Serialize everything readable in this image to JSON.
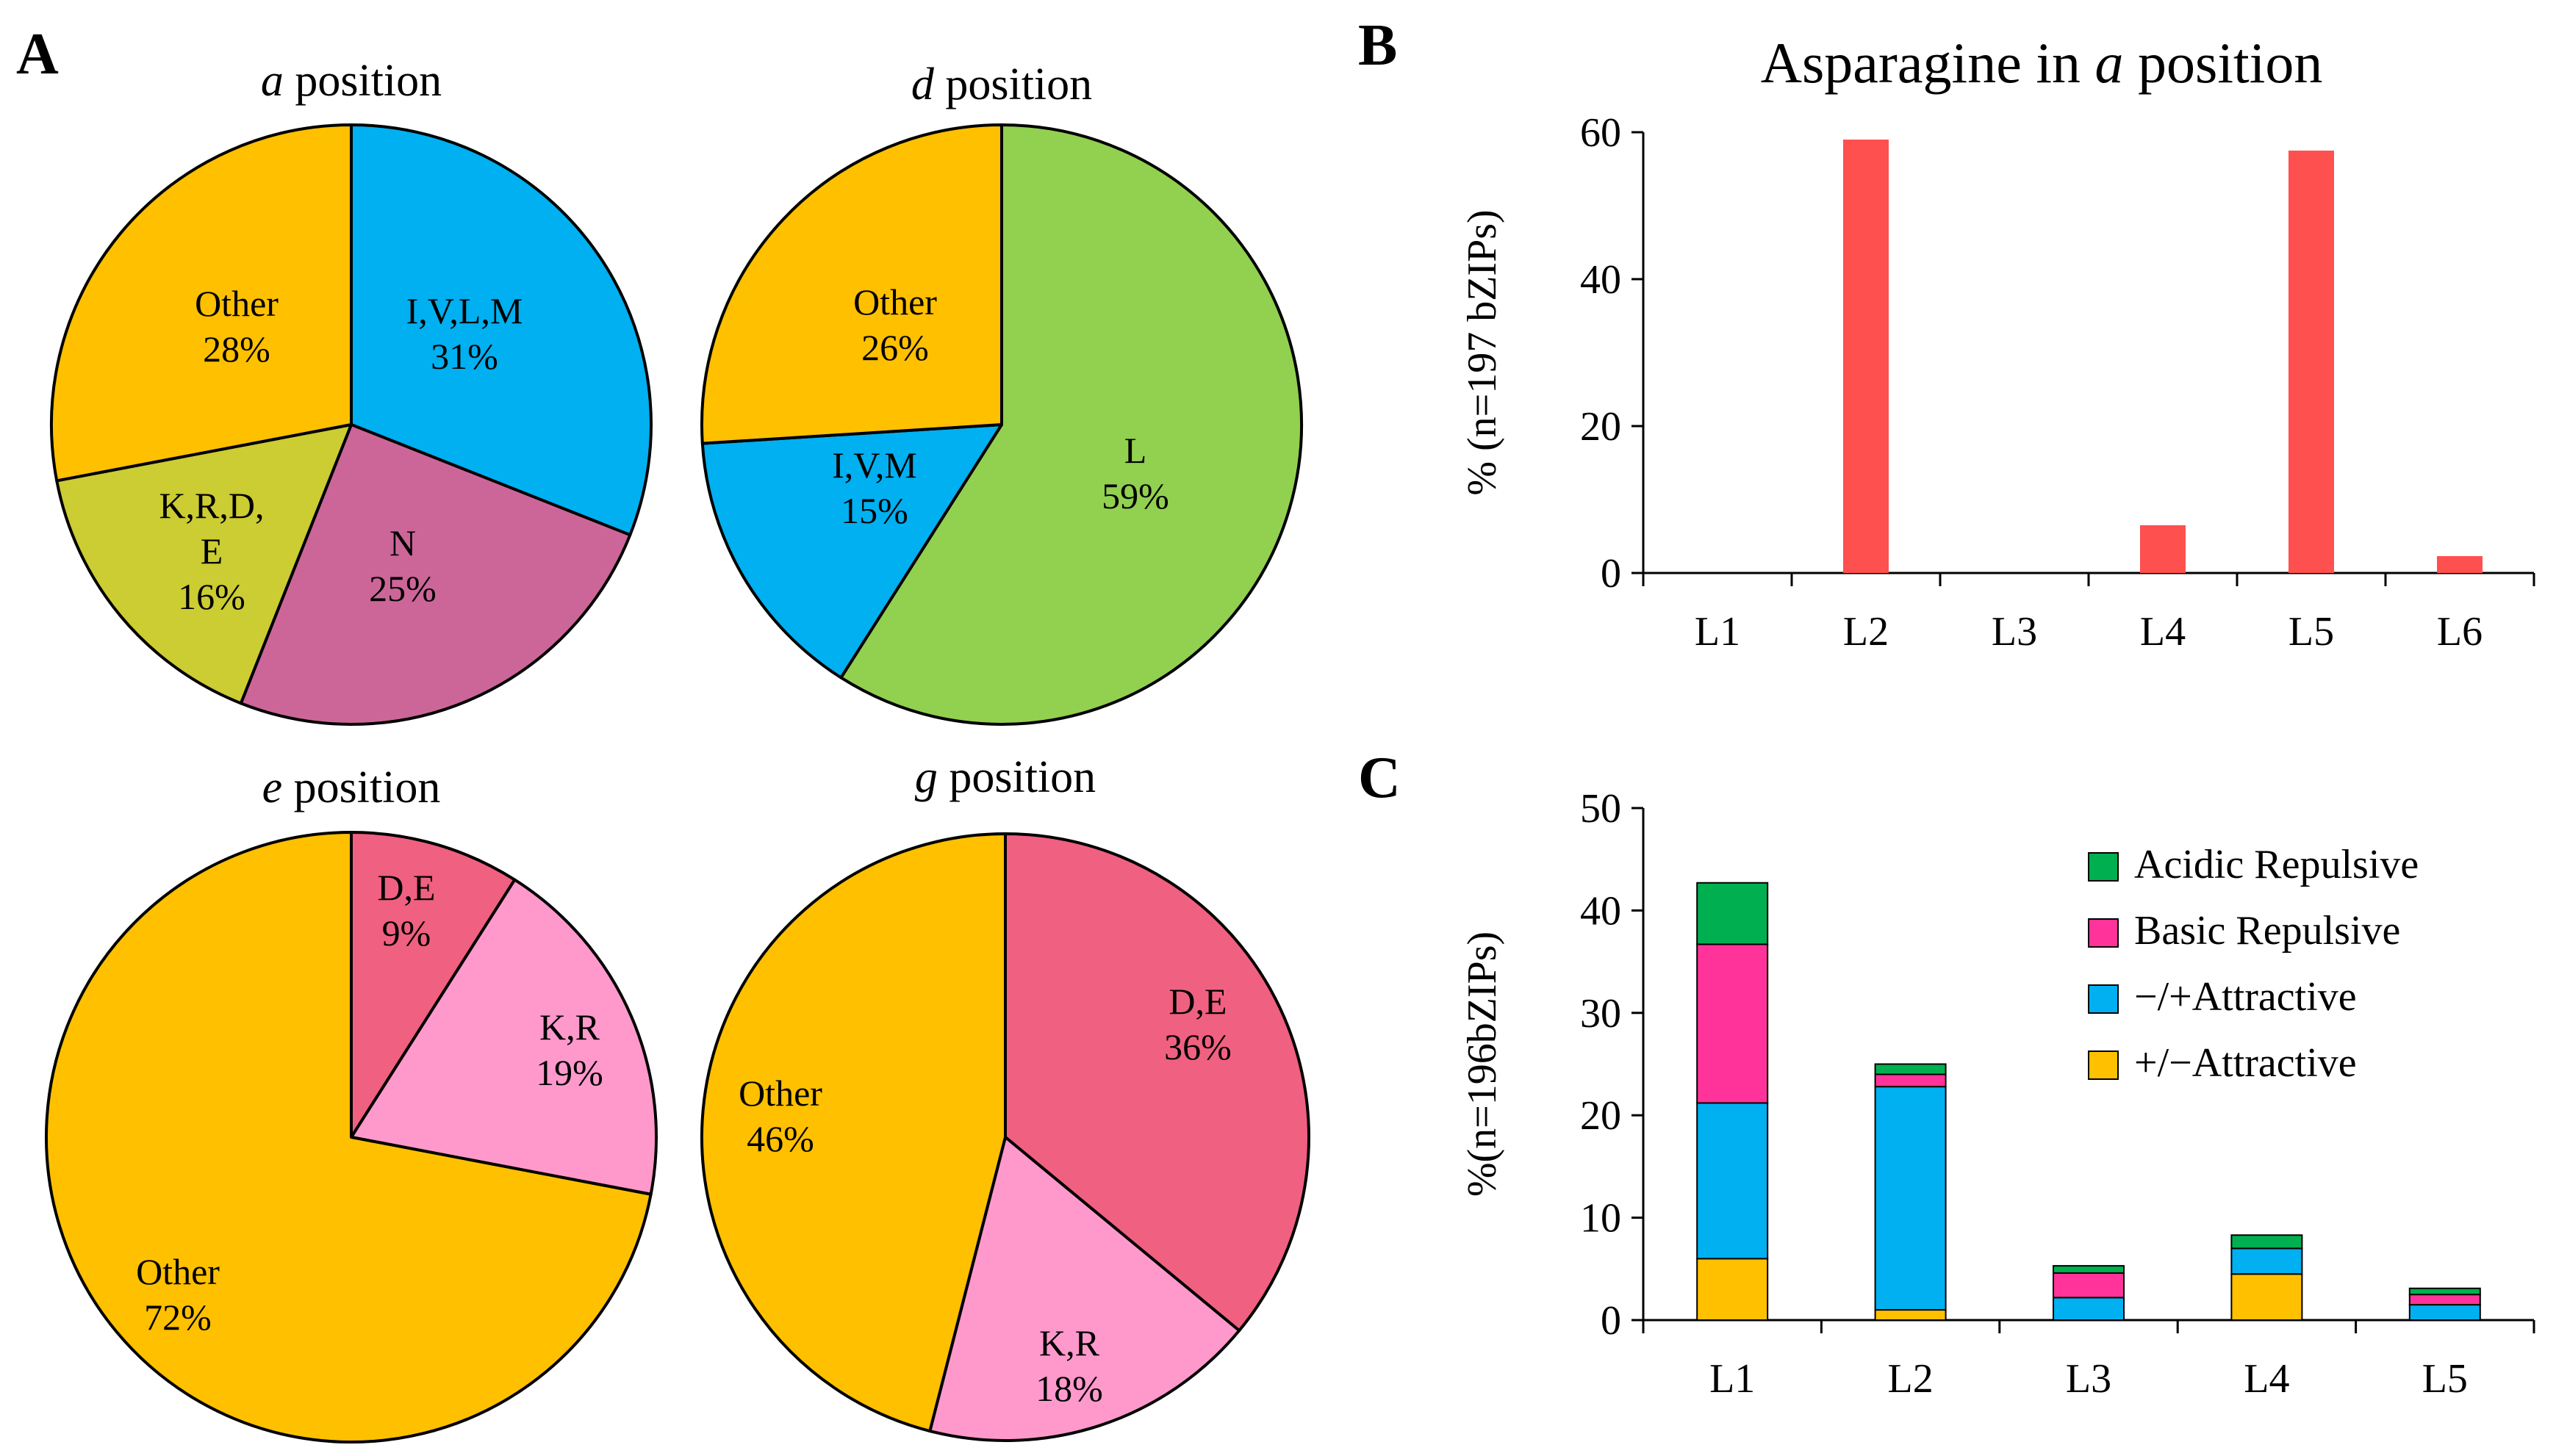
{
  "panels": {
    "a": "A",
    "b": "B",
    "c": "C"
  },
  "chart_data": [
    {
      "type": "pie",
      "id": "pie-a",
      "title_italic": "a",
      "title_rest": " position",
      "slices": [
        {
          "name": "I,V,L,M",
          "value": 31,
          "label": "31%",
          "color": "#00b0f0"
        },
        {
          "name": "N",
          "value": 25,
          "label": "25%",
          "color": "#cc6699"
        },
        {
          "name": "K,R,D,E",
          "value": 16,
          "label": "16%",
          "color": "#cccc33",
          "label_lines": [
            "K,R,D,",
            "E"
          ]
        },
        {
          "name": "Other",
          "value": 28,
          "label": "28%",
          "color": "#ffc000"
        }
      ]
    },
    {
      "type": "pie",
      "id": "pie-d",
      "title_italic": "d",
      "title_rest": " position",
      "slices": [
        {
          "name": "L",
          "value": 59,
          "label": "59%",
          "color": "#92d050"
        },
        {
          "name": "I,V,M",
          "value": 15,
          "label": "15%",
          "color": "#00b0f0"
        },
        {
          "name": "Other",
          "value": 26,
          "label": "26%",
          "color": "#ffc000"
        }
      ]
    },
    {
      "type": "pie",
      "id": "pie-e",
      "title_italic": "e",
      "title_rest": " position",
      "slices": [
        {
          "name": "D,E",
          "value": 9,
          "label": "9%",
          "color": "#f06080"
        },
        {
          "name": "K,R",
          "value": 19,
          "label": "19%",
          "color": "#ff99cc"
        },
        {
          "name": "Other",
          "value": 72,
          "label": "72%",
          "color": "#ffc000"
        }
      ]
    },
    {
      "type": "pie",
      "id": "pie-g",
      "title_italic": "g",
      "title_rest": " position",
      "slices": [
        {
          "name": "D,E",
          "value": 36,
          "label": "36%",
          "color": "#f06080"
        },
        {
          "name": "K,R",
          "value": 18,
          "label": "18%",
          "color": "#ff99cc"
        },
        {
          "name": "Other",
          "value": 46,
          "label": "46%",
          "color": "#ffc000"
        }
      ]
    },
    {
      "type": "bar",
      "id": "bar-b",
      "title_prefix": "Asparagine in ",
      "title_italic": "a",
      "title_suffix": " position",
      "ylabel": "% (n=197 bZIPs)",
      "categories": [
        "L1",
        "L2",
        "L3",
        "L4",
        "L5",
        "L6"
      ],
      "values": [
        0,
        59,
        0,
        6.5,
        57.5,
        2.3
      ],
      "ylim": [
        0,
        60
      ],
      "yticks": [
        0,
        20,
        40,
        60
      ],
      "color": "#ff5050"
    },
    {
      "type": "bar",
      "stacked": true,
      "id": "bar-c",
      "ylabel": "%(n=196bZIPs)",
      "categories": [
        "L1",
        "L2",
        "L3",
        "L4",
        "L5"
      ],
      "ylim": [
        0,
        50
      ],
      "yticks": [
        0,
        10,
        20,
        30,
        40,
        50
      ],
      "legend_position": "top-right",
      "series": [
        {
          "name": "+/−Attractive",
          "color": "#ffc000",
          "values": [
            6,
            1,
            0,
            4.5,
            0
          ]
        },
        {
          "name": "−/+Attractive",
          "color": "#00b0f0",
          "values": [
            15.2,
            21.8,
            2.2,
            2.5,
            1.5
          ]
        },
        {
          "name": "Basic Repulsive",
          "color": "#ff3399",
          "values": [
            15.5,
            1.2,
            2.4,
            0,
            1
          ]
        },
        {
          "name": "Acidic Repulsive",
          "color": "#00b050",
          "values": [
            6,
            1,
            0.7,
            1.3,
            0.6
          ]
        }
      ]
    }
  ]
}
